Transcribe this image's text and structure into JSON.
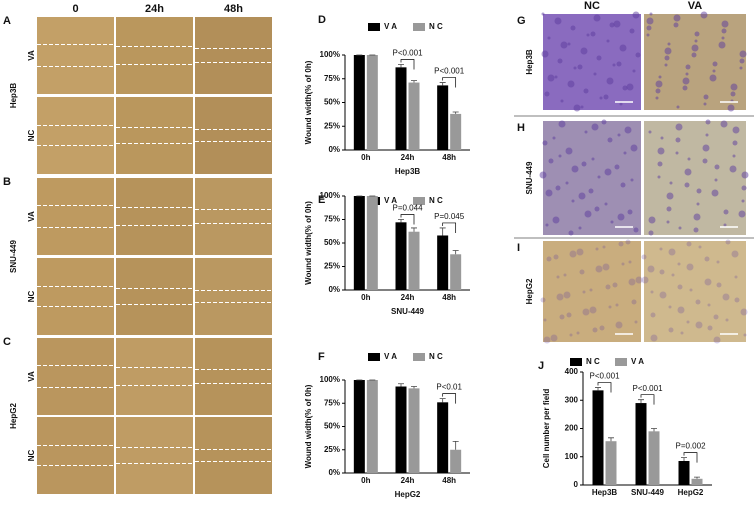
{
  "wound_panels": {
    "letters": [
      "A",
      "B",
      "C"
    ],
    "columns": [
      "0",
      "24h",
      "48h"
    ],
    "cell_lines": [
      "Hep3B",
      "SNU-449",
      "HepG2"
    ],
    "rows": [
      "VA",
      "NC"
    ]
  },
  "invasion_panels": {
    "letters": [
      "G",
      "H",
      "I"
    ],
    "columns": [
      "NC",
      "VA"
    ],
    "cell_lines": [
      "Hep3B",
      "SNU-449",
      "HepG2"
    ]
  },
  "chart_data": [
    {
      "type": "bar",
      "panel": "D",
      "ylabel": "Wound width(% of 0h)",
      "xlabel": "Hep3B",
      "categories": [
        "0h",
        "24h",
        "48h"
      ],
      "series": [
        {
          "name": "V A",
          "color": "#000000",
          "values": [
            100,
            87,
            68
          ],
          "errors": [
            0,
            3,
            3
          ]
        },
        {
          "name": "N C",
          "color": "#999999",
          "values": [
            100,
            71,
            38
          ],
          "errors": [
            0,
            2,
            2
          ]
        }
      ],
      "ylim": [
        0,
        100
      ],
      "yticks": [
        {
          "value": 0,
          "label": "0%"
        },
        {
          "value": 25,
          "label": "25%"
        },
        {
          "value": 50,
          "label": "50%"
        },
        {
          "value": 75,
          "label": "75%"
        },
        {
          "value": 100,
          "label": "100%"
        }
      ],
      "annotations": [
        {
          "category": "24h",
          "text": "P<0.001"
        },
        {
          "category": "48h",
          "text": "P<0.001"
        }
      ]
    },
    {
      "type": "bar",
      "panel": "E",
      "ylabel": "Wound width(% of 0h)",
      "xlabel": "SNU-449",
      "categories": [
        "0h",
        "24h",
        "48h"
      ],
      "series": [
        {
          "name": "V A",
          "color": "#000000",
          "values": [
            100,
            72,
            58
          ],
          "errors": [
            0,
            3,
            8
          ]
        },
        {
          "name": "N C",
          "color": "#999999",
          "values": [
            100,
            62,
            38
          ],
          "errors": [
            0,
            4,
            4
          ]
        }
      ],
      "ylim": [
        0,
        100
      ],
      "yticks": [
        {
          "value": 0,
          "label": "0%"
        },
        {
          "value": 25,
          "label": "25%"
        },
        {
          "value": 50,
          "label": "50%"
        },
        {
          "value": 75,
          "label": "75%"
        },
        {
          "value": 100,
          "label": "100%"
        }
      ],
      "annotations": [
        {
          "category": "24h",
          "text": "P=0.044"
        },
        {
          "category": "48h",
          "text": "P=0.045"
        }
      ]
    },
    {
      "type": "bar",
      "panel": "F",
      "ylabel": "Wound width(% of 0h)",
      "xlabel": "HepG2",
      "categories": [
        "0h",
        "24h",
        "48h"
      ],
      "series": [
        {
          "name": "V A",
          "color": "#000000",
          "values": [
            100,
            93,
            76
          ],
          "errors": [
            0,
            3,
            4
          ]
        },
        {
          "name": "N C",
          "color": "#999999",
          "values": [
            100,
            91,
            25
          ],
          "errors": [
            0,
            2,
            9
          ]
        }
      ],
      "ylim": [
        0,
        100
      ],
      "yticks": [
        {
          "value": 0,
          "label": "0%"
        },
        {
          "value": 25,
          "label": "25%"
        },
        {
          "value": 50,
          "label": "50%"
        },
        {
          "value": 75,
          "label": "75%"
        },
        {
          "value": 100,
          "label": "100%"
        }
      ],
      "annotations": [
        {
          "category": "48h",
          "text": "P<0.01"
        }
      ]
    },
    {
      "type": "bar",
      "panel": "J",
      "ylabel": "Cell number per field",
      "categories": [
        "Hep3B",
        "SNU-449",
        "HepG2"
      ],
      "series": [
        {
          "name": "N C",
          "color": "#000000",
          "values": [
            335,
            290,
            85
          ],
          "errors": [
            10,
            12,
            12
          ]
        },
        {
          "name": "V A",
          "color": "#999999",
          "values": [
            155,
            190,
            22
          ],
          "errors": [
            12,
            10,
            6
          ]
        }
      ],
      "ylim": [
        0,
        400
      ],
      "yticks": [
        0,
        100,
        200,
        300,
        400
      ],
      "annotations": [
        {
          "category": "Hep3B",
          "text": "P<0.001"
        },
        {
          "category": "SNU-449",
          "text": "P<0.001"
        },
        {
          "category": "HepG2",
          "text": "P=0.002"
        }
      ]
    }
  ]
}
